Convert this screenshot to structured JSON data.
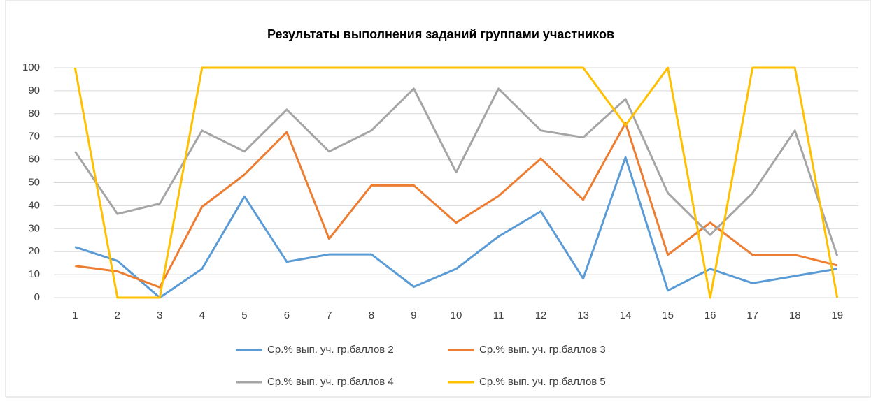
{
  "chart_data": {
    "type": "line",
    "title": "Результаты выполнения заданий группами участников",
    "categories": [
      "1",
      "2",
      "3",
      "4",
      "5",
      "6",
      "7",
      "8",
      "9",
      "10",
      "11",
      "12",
      "13",
      "14",
      "15",
      "16",
      "17",
      "18",
      "19"
    ],
    "series": [
      {
        "name": "Ср.% вып. уч. гр.баллов 2",
        "color": "#5b9bd5",
        "values": [
          22,
          16,
          0,
          12.5,
          44,
          15.6,
          18.8,
          18.8,
          4.7,
          12.5,
          26.6,
          37.5,
          8.3,
          61,
          3.1,
          12.5,
          6.3,
          9.4,
          12.5
        ]
      },
      {
        "name": "Ср.% вып. уч. гр.баллов 3",
        "color": "#ed7d31",
        "values": [
          13.8,
          11.4,
          4.5,
          39.5,
          53.5,
          72,
          25.6,
          48.8,
          48.8,
          32.6,
          44.2,
          60.5,
          42.6,
          76,
          18.6,
          32.6,
          18.6,
          18.6,
          14
        ]
      },
      {
        "name": "Ср.% вып. уч. гр.баллов 4",
        "color": "#a5a5a5",
        "values": [
          63.6,
          36.4,
          40.9,
          72.7,
          63.6,
          81.8,
          63.6,
          72.7,
          90.9,
          54.5,
          90.9,
          72.7,
          69.7,
          86.4,
          45.5,
          27.3,
          45.5,
          72.7,
          18.2
        ]
      },
      {
        "name": "Ср.% вып. уч. гр.баллов 5",
        "color": "#ffc000",
        "values": [
          100,
          0,
          0,
          100,
          100,
          100,
          100,
          100,
          100,
          100,
          100,
          100,
          100,
          75,
          100,
          0,
          100,
          100,
          0
        ]
      }
    ],
    "ylim": [
      0,
      100
    ],
    "yticks": [
      0,
      10,
      20,
      30,
      40,
      50,
      60,
      70,
      80,
      90,
      100
    ],
    "grid": true,
    "legend": "bottom"
  }
}
